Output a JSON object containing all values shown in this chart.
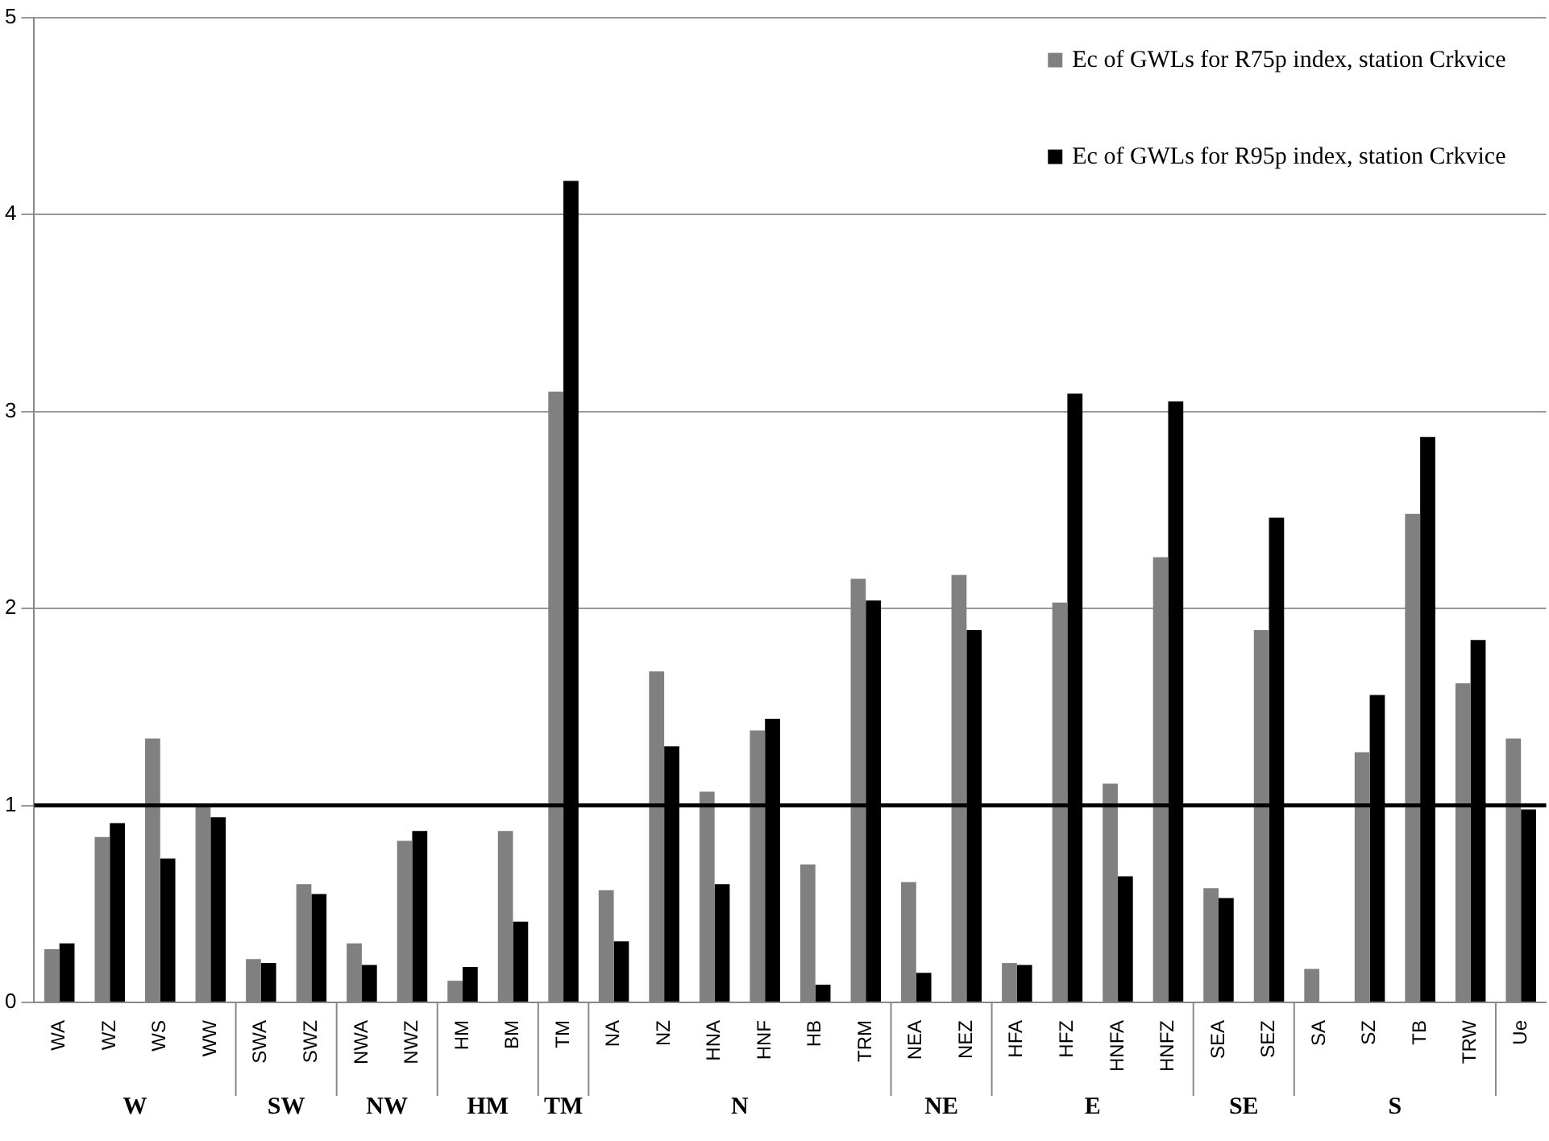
{
  "chart_data": {
    "type": "bar",
    "categories": [
      "WA",
      "WZ",
      "WS",
      "WW",
      "SWA",
      "SWZ",
      "NWA",
      "NWZ",
      "HM",
      "BM",
      "TM",
      "NA",
      "NZ",
      "HNA",
      "HNF",
      "HB",
      "TRM",
      "NEA",
      "NEZ",
      "HFA",
      "HFZ",
      "HNFA",
      "HNFZ",
      "SEA",
      "SEZ",
      "SA",
      "SZ",
      "TB",
      "TRW",
      "Ue"
    ],
    "series": [
      {
        "name": "Ec of GWLs for R75p index, station Crkvice",
        "color": "#808080",
        "values": [
          0.27,
          0.84,
          1.34,
          1.01,
          0.22,
          0.6,
          0.3,
          0.82,
          0.11,
          0.87,
          3.1,
          0.57,
          1.68,
          1.07,
          1.38,
          0.7,
          2.15,
          0.61,
          2.17,
          0.2,
          2.03,
          1.11,
          2.26,
          0.58,
          1.89,
          0.17,
          1.27,
          2.48,
          1.62,
          1.34
        ]
      },
      {
        "name": "Ec of GWLs for R95p index, station Crkvice",
        "color": "#000000",
        "values": [
          0.3,
          0.91,
          0.73,
          0.94,
          0.2,
          0.55,
          0.19,
          0.87,
          0.18,
          0.41,
          4.17,
          0.31,
          1.3,
          0.6,
          1.44,
          0.09,
          2.04,
          0.15,
          1.89,
          0.19,
          3.09,
          0.64,
          3.05,
          0.53,
          2.46,
          null,
          1.56,
          2.87,
          1.84,
          0.98
        ]
      }
    ],
    "ylim": [
      0,
      5
    ],
    "yticks": [
      0,
      1,
      2,
      3,
      4,
      5
    ],
    "grid": "y",
    "legend": "top right",
    "ref_lines": [
      {
        "axis": "y",
        "value": 1,
        "color": "#000000"
      }
    ],
    "annotations": [
      "W",
      "SW",
      "NW",
      "HM",
      "TM",
      "N",
      "NE",
      "E",
      "SE",
      "S"
    ]
  }
}
